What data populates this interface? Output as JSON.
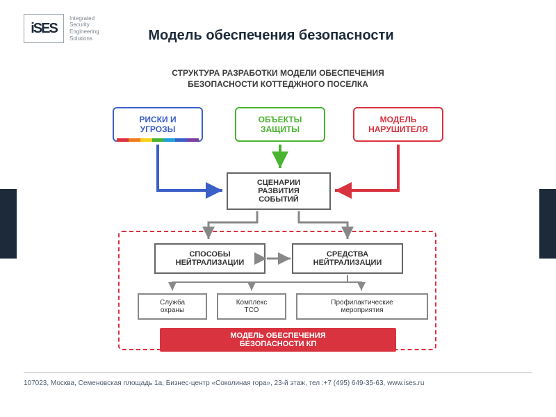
{
  "logo": {
    "mark": "iSES",
    "lines": [
      "Integrated",
      "Security",
      "Engineering",
      "Solutions"
    ]
  },
  "title": "Модель обеспечения безопасности",
  "subtitle": "СТРУКТУРА РАЗРАБОТКИ МОДЕЛИ ОБЕСПЕЧЕНИЯ\nБЕЗОПАСНОСТИ КОТТЕДЖНОГО ПОСЕЛКА",
  "top_boxes": {
    "risks": {
      "label": "РИСКИ И\nУГРОЗЫ",
      "color": "#3a5fc7",
      "arrow": "#3a5fc7"
    },
    "objects": {
      "label": "ОБЪЕКТЫ\nЗАЩИТЫ",
      "color": "#4ab32f",
      "arrow": "#4ab32f"
    },
    "model": {
      "label": "МОДЕЛЬ\nНАРУШИТЕЛЯ",
      "color": "#d9333f",
      "arrow": "#d9333f"
    }
  },
  "rainbow_colors": [
    "#d9333f",
    "#f07c1e",
    "#f7d11e",
    "#4ab32f",
    "#1f9fd6",
    "#3a5fc7",
    "#7b3fa0"
  ],
  "scenario": "СЦЕНАРИИ\nРАЗВИТИЯ\nСОБЫТИЙ",
  "methods": "СПОСОБЫ\nНЕЙТРАЛИЗАЦИИ",
  "means": "СРЕДСТВА\nНЕЙТРАЛИЗАЦИИ",
  "small": {
    "guard": "Служба\nохраны",
    "tso": "Комплекс\nТСО",
    "prevent": "Профилактические\nмероприятия"
  },
  "model_bar": "МОДЕЛЬ ОБЕСПЕЧЕНИЯ\nБЕЗОПАСНОСТИ КП",
  "footer": "107023,  Москва,  Семеновская площадь 1а,  Бизнес-центр «Соколиная гора»,   23-й этаж,   тел :+7 (495) 649-35-63,   www.ises.ru",
  "colors": {
    "side_stripe": "#1c2a3a",
    "gray_arrow": "#888888",
    "dashed": "#d9333f"
  }
}
